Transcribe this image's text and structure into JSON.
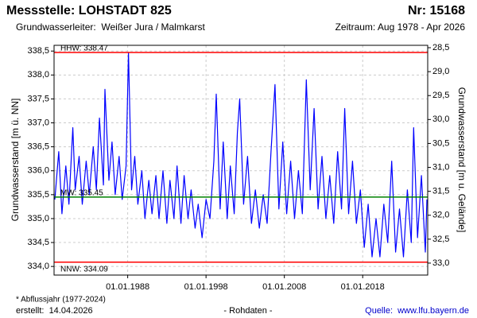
{
  "chart_data": {
    "type": "line",
    "title": "Messstelle: LOHSTADT 825",
    "number": "Nr: 15168",
    "subtitle": "Grundwasserleiter:  Weißer Jura / Malmkarst",
    "period": "Zeitraum: Aug 1978 - Apr 2026",
    "ylabel": "Grundwasserstand [m ü. NN]",
    "y2label": "Grundwasserstand [m u. Gelände]",
    "footnote": "* Abflussjahr (1977-2024)",
    "created": "erstellt:  14.04.2026",
    "note": "- Rohdaten -",
    "source": "Quelle:  www.lfu.bayern.de",
    "grid": true,
    "xlim": [
      1978.6,
      2026.3
    ],
    "xticks": [
      {
        "value": 1988,
        "label": "01.01.1988"
      },
      {
        "value": 1998,
        "label": "01.01.1998"
      },
      {
        "value": 2008,
        "label": "01.01.2008"
      },
      {
        "value": 2018,
        "label": "01.01.2018"
      }
    ],
    "ylim": [
      333.82,
      338.62
    ],
    "yticks": [
      {
        "value": 334.0,
        "label": "334,0"
      },
      {
        "value": 334.5,
        "label": "334,5"
      },
      {
        "value": 335.0,
        "label": "335,0"
      },
      {
        "value": 335.5,
        "label": "335,5"
      },
      {
        "value": 336.0,
        "label": "336,0"
      },
      {
        "value": 336.5,
        "label": "336,5"
      },
      {
        "value": 337.0,
        "label": "337,0"
      },
      {
        "value": 337.5,
        "label": "337,5"
      },
      {
        "value": 338.0,
        "label": "338,0"
      },
      {
        "value": 338.5,
        "label": "338,5"
      }
    ],
    "y2lim": [
      33.25,
      28.45
    ],
    "y2ticks": [
      {
        "value": 28.5,
        "label": "28,5"
      },
      {
        "value": 29.0,
        "label": "29,0"
      },
      {
        "value": 29.5,
        "label": "29,5"
      },
      {
        "value": 30.0,
        "label": "30,0"
      },
      {
        "value": 30.5,
        "label": "30,5"
      },
      {
        "value": 31.0,
        "label": "31,0"
      },
      {
        "value": 31.5,
        "label": "31,5"
      },
      {
        "value": 32.0,
        "label": "32,0"
      },
      {
        "value": 32.5,
        "label": "32,5"
      },
      {
        "value": 33.0,
        "label": "33,0"
      }
    ],
    "reference_lines": [
      {
        "label": "HHW: 338.47",
        "value": 338.47,
        "color": "#ff0000"
      },
      {
        "label": "MW: 335.45",
        "value": 335.45,
        "color": "#008000"
      },
      {
        "label": "NNW: 334.09",
        "value": 334.09,
        "color": "#ff0000"
      }
    ],
    "series": [
      {
        "color": "#0000ff",
        "x": [
          1978.7,
          1979.2,
          1979.6,
          1980.1,
          1980.5,
          1981.0,
          1981.3,
          1981.8,
          1982.2,
          1982.7,
          1983.1,
          1983.6,
          1984.0,
          1984.4,
          1984.9,
          1985.1,
          1985.6,
          1986.0,
          1986.4,
          1986.9,
          1987.3,
          1987.8,
          1988.1,
          1988.5,
          1988.9,
          1989.3,
          1989.8,
          1990.2,
          1990.7,
          1991.1,
          1991.6,
          1992.0,
          1992.5,
          1993.0,
          1993.4,
          1993.9,
          1994.3,
          1994.8,
          1995.2,
          1995.7,
          1996.1,
          1996.6,
          1997.0,
          1997.5,
          1998.0,
          1998.5,
          1999.0,
          1999.3,
          1999.8,
          2000.2,
          2000.7,
          2001.1,
          2001.6,
          2002.0,
          2002.3,
          2002.8,
          2003.3,
          2003.8,
          2004.3,
          2004.8,
          2005.3,
          2005.8,
          2006.3,
          2006.8,
          2007.3,
          2007.8,
          2008.3,
          2008.8,
          2009.3,
          2009.8,
          2010.3,
          2010.8,
          2011.3,
          2011.8,
          2012.3,
          2012.8,
          2013.3,
          2013.8,
          2014.3,
          2014.8,
          2015.3,
          2015.7,
          2016.2,
          2016.7,
          2017.2,
          2017.7,
          2018.2,
          2018.7,
          2019.2,
          2019.7,
          2020.2,
          2020.7,
          2021.2,
          2021.7,
          2022.2,
          2022.7,
          2023.2,
          2023.7,
          2024.2,
          2024.5,
          2025.0,
          2025.5,
          2026.0,
          2026.2
        ],
        "values": [
          335.4,
          336.4,
          335.1,
          336.1,
          335.3,
          336.9,
          335.6,
          336.3,
          335.3,
          336.2,
          335.5,
          336.5,
          335.6,
          337.1,
          335.7,
          337.7,
          335.8,
          336.6,
          335.5,
          336.3,
          335.4,
          336.1,
          338.47,
          335.6,
          336.3,
          335.3,
          336.0,
          335.0,
          335.8,
          335.1,
          335.9,
          335.0,
          336.0,
          334.9,
          335.8,
          335.0,
          336.1,
          334.9,
          335.9,
          335.0,
          335.6,
          334.8,
          335.3,
          334.6,
          335.4,
          335.0,
          336.2,
          337.6,
          335.2,
          336.6,
          335.0,
          336.1,
          335.1,
          336.8,
          337.5,
          335.3,
          336.3,
          334.9,
          335.6,
          334.8,
          335.5,
          334.9,
          336.4,
          337.8,
          335.2,
          336.6,
          335.1,
          336.2,
          335.0,
          336.0,
          335.1,
          337.9,
          335.6,
          337.3,
          335.2,
          336.3,
          335.0,
          335.9,
          334.9,
          336.4,
          335.2,
          337.3,
          335.1,
          336.2,
          334.9,
          335.6,
          334.4,
          335.3,
          334.2,
          335.0,
          334.2,
          335.3,
          334.5,
          336.2,
          334.3,
          335.2,
          334.2,
          335.6,
          334.5,
          336.9,
          334.6,
          335.9,
          334.3,
          335.4
        ]
      }
    ]
  }
}
